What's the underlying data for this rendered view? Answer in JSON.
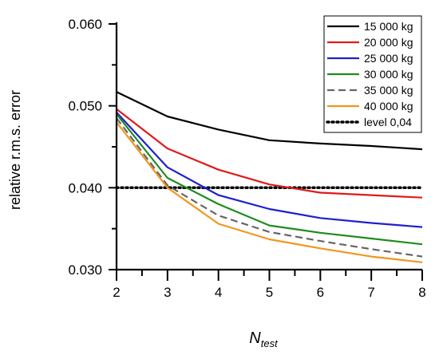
{
  "chart_data": {
    "type": "line",
    "xlabel": "N",
    "xlabel_sub": "test",
    "ylabel": "relative r.m.s. error",
    "x": [
      2,
      3,
      4,
      5,
      6,
      7,
      8
    ],
    "x_tick_labels": [
      "2",
      "3",
      "4",
      "5",
      "6",
      "7",
      "8"
    ],
    "y_tick_labels": [
      "0.030",
      "0.040",
      "0.050",
      "0.060"
    ],
    "y_tick_values": [
      0.03,
      0.04,
      0.05,
      0.06
    ],
    "xlim": [
      2,
      8
    ],
    "ylim": [
      0.03,
      0.06
    ],
    "grid": false,
    "legend_position": "top-right",
    "series": [
      {
        "name": "15 000 kg",
        "color": "#000000",
        "dash": "solid",
        "values": [
          0.0517,
          0.0487,
          0.0471,
          0.0458,
          0.0454,
          0.0451,
          0.0447
        ]
      },
      {
        "name": "20 000 kg",
        "color": "#e01a1a",
        "dash": "solid",
        "values": [
          0.0496,
          0.0448,
          0.0422,
          0.0404,
          0.0394,
          0.0391,
          0.0388
        ]
      },
      {
        "name": "25 000 kg",
        "color": "#1f1fcc",
        "dash": "solid",
        "values": [
          0.0492,
          0.0425,
          0.0391,
          0.0374,
          0.0363,
          0.0357,
          0.0352
        ]
      },
      {
        "name": "30 000 kg",
        "color": "#1e8c1e",
        "dash": "solid",
        "values": [
          0.049,
          0.0412,
          0.038,
          0.0354,
          0.0345,
          0.0338,
          0.0331
        ]
      },
      {
        "name": "35 000 kg",
        "color": "#666666",
        "dash": "dashed",
        "values": [
          0.0485,
          0.0403,
          0.0366,
          0.0346,
          0.0335,
          0.0325,
          0.0316
        ]
      },
      {
        "name": "40 000 kg",
        "color": "#f0961e",
        "dash": "solid",
        "values": [
          0.048,
          0.04,
          0.0356,
          0.0337,
          0.0326,
          0.0316,
          0.0309
        ]
      },
      {
        "name": "level 0,04",
        "color": "#000000",
        "dash": "dotted",
        "values": [
          0.04,
          0.04,
          0.04,
          0.04,
          0.04,
          0.04,
          0.04
        ]
      }
    ]
  }
}
